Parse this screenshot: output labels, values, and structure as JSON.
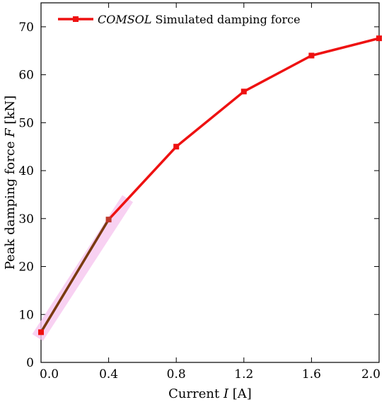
{
  "chart_data": {
    "type": "line",
    "xlabel_prefix": "Current ",
    "xlabel_var": "I",
    "xlabel_unit": " [A]",
    "ylabel_prefix": "Peak damping force ",
    "ylabel_var": "F",
    "ylabel_unit": " [kN]",
    "xlim": [
      0.0,
      2.0
    ],
    "ylim": [
      0,
      75
    ],
    "xticks": [
      "0.0",
      "0.4",
      "0.8",
      "1.2",
      "1.6",
      "2.0"
    ],
    "yticks": [
      "0",
      "10",
      "20",
      "30",
      "40",
      "50",
      "60",
      "70"
    ],
    "grid": false,
    "legend_position": "top-left",
    "series": [
      {
        "name_italic": "COMSOL",
        "name_rest": " Simulated damping force",
        "color": "#ee1111",
        "marker": "square",
        "x": [
          0.0,
          0.4,
          0.8,
          1.2,
          1.6,
          2.0
        ],
        "y": [
          6.3,
          29.8,
          45.0,
          56.5,
          64.0,
          67.6
        ]
      }
    ],
    "highlight_segment": {
      "from_x": 0.0,
      "to_x": 0.4,
      "color": "#7a3a10",
      "glow_color": "#f7c6f0"
    }
  }
}
